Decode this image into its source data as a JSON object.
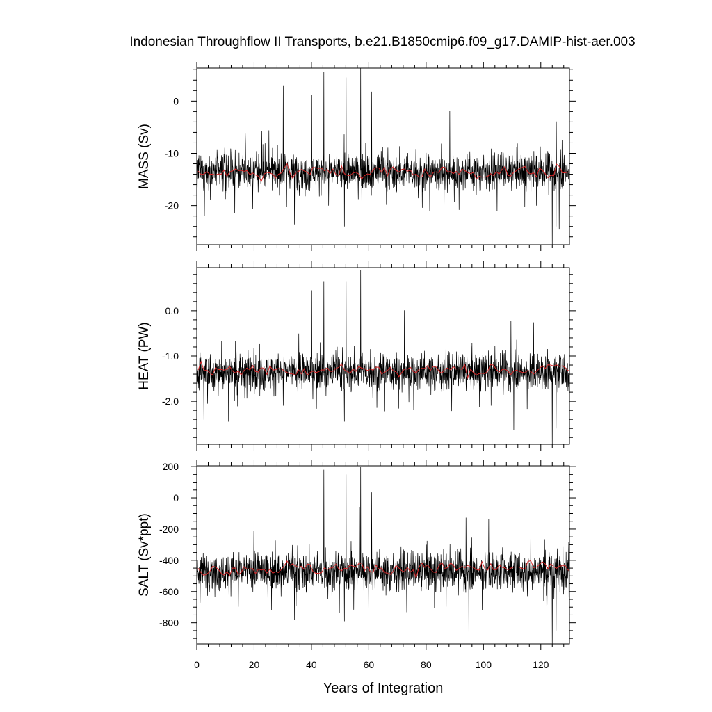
{
  "title": "Indonesian Throughflow II Transports, b.e21.B1850cmip6.f09_g17.DAMIP-hist-aer.003",
  "chart_data": [
    {
      "type": "line",
      "ylabel": "MASS (Sv)",
      "xlim": [
        0,
        130
      ],
      "ylim": [
        -27.5,
        6.3
      ],
      "yticks": [
        -20,
        -10,
        0
      ],
      "ytick_labels": [
        "-20",
        "-10",
        "0"
      ],
      "ytick_minor_step": 2,
      "series": [
        {
          "role": "monthly",
          "color": "#000000",
          "mean": -13.6,
          "std": 2.4,
          "peaks": [
            [
              44.3,
              5.5
            ],
            [
              57.2,
              6.3
            ],
            [
              52.1,
              4.5
            ],
            [
              61.0,
              1.8
            ],
            [
              30.2,
              3.0
            ],
            [
              40.1,
              1.2
            ],
            [
              124.0,
              -27.5
            ],
            [
              125.3,
              -24.0
            ],
            [
              51.5,
              -24.0
            ],
            [
              34.1,
              -23.6
            ]
          ]
        },
        {
          "role": "annual mean",
          "color": "#d62728",
          "mean": -13.6,
          "std": 0.9
        }
      ]
    },
    {
      "type": "line",
      "ylabel": "HEAT (PW)",
      "xlim": [
        0,
        130
      ],
      "ylim": [
        -2.95,
        0.95
      ],
      "yticks": [
        -2.0,
        -1.0,
        0.0
      ],
      "ytick_labels": [
        "-2.0",
        "-1.0",
        "0.0"
      ],
      "ytick_minor_step": 0.2,
      "series": [
        {
          "role": "monthly",
          "color": "#000000",
          "mean": -1.35,
          "std": 0.28,
          "peaks": [
            [
              57.2,
              0.9
            ],
            [
              44.3,
              0.65
            ],
            [
              52.1,
              0.65
            ],
            [
              40.1,
              0.45
            ],
            [
              124.0,
              -2.95
            ],
            [
              125.3,
              -2.6
            ],
            [
              51.5,
              -2.45
            ],
            [
              11.1,
              -2.45
            ]
          ]
        },
        {
          "role": "annual mean",
          "color": "#d62728",
          "mean": -1.3,
          "std": 0.1
        }
      ]
    },
    {
      "type": "line",
      "ylabel": "SALT (Sv*ppt)",
      "xlim": [
        0,
        130
      ],
      "ylim": [
        -935,
        205
      ],
      "yticks": [
        -800,
        -600,
        -400,
        -200,
        0,
        200
      ],
      "ytick_labels": [
        "-800",
        "-600",
        "-400",
        "-200",
        "0",
        "200"
      ],
      "ytick_minor_step": 50,
      "series": [
        {
          "role": "monthly",
          "color": "#000000",
          "mean": -470,
          "std": 85,
          "peaks": [
            [
              44.3,
              180
            ],
            [
              57.2,
              200
            ],
            [
              52.1,
              150
            ],
            [
              61.0,
              35
            ],
            [
              124.0,
              -935
            ],
            [
              125.3,
              -850
            ],
            [
              51.5,
              -790
            ],
            [
              34.1,
              -780
            ]
          ]
        },
        {
          "role": "annual mean",
          "color": "#d62728",
          "mean": -450,
          "std": 30
        }
      ]
    }
  ],
  "x_axis": {
    "label": "Years of Integration",
    "ticks": [
      0,
      20,
      40,
      60,
      80,
      100,
      120
    ],
    "tick_labels": [
      "0",
      "20",
      "40",
      "60",
      "80",
      "100",
      "120"
    ],
    "minor_step": 4,
    "range": [
      0,
      130
    ]
  }
}
